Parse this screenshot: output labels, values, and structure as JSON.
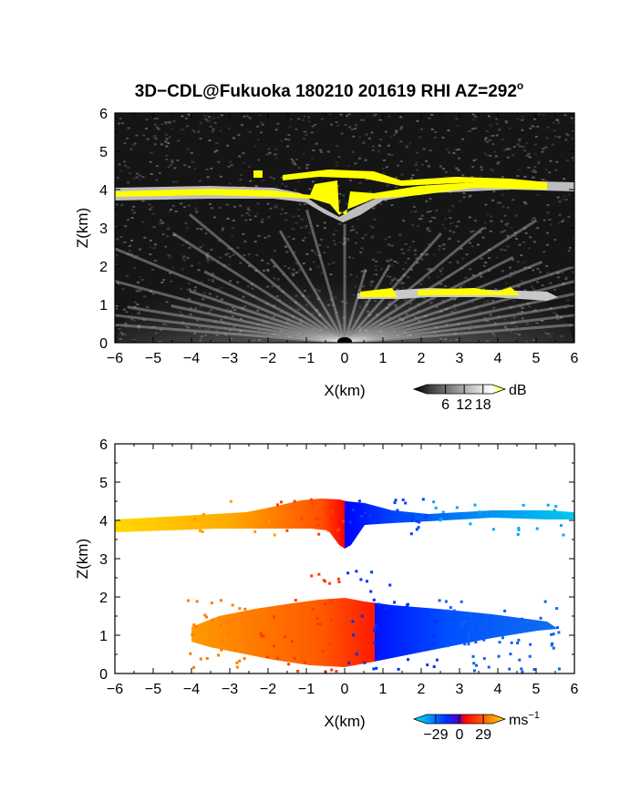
{
  "title": "3D−CDL@Fukuoka 180210 201619 RHI AZ=292",
  "title_superscript": "o",
  "chart_data": [
    {
      "type": "heatmap",
      "name": "backscatter-intensity",
      "xlabel": "X(km)",
      "ylabel": "Z(km)",
      "xlim": [
        -6,
        6
      ],
      "ylim": [
        0,
        6
      ],
      "xticks": [
        "−6",
        "−5",
        "−4",
        "−3",
        "−2",
        "−1",
        "0",
        "1",
        "2",
        "3",
        "4",
        "5",
        "6"
      ],
      "yticks": [
        "0",
        "1",
        "2",
        "3",
        "4",
        "5",
        "6"
      ],
      "colorbar": {
        "unit": "dB",
        "ticks": [
          "6",
          "12",
          "18"
        ],
        "tick_values": [
          6,
          12,
          18
        ],
        "range": [
          0,
          21
        ],
        "colors": [
          "#000000",
          "#ffffff",
          "#ffff00"
        ]
      },
      "background": "#111111",
      "features": [
        {
          "kind": "cloud-layer",
          "x_range": [
            -6,
            6
          ],
          "z_center": 3.9,
          "z_top": 4.35,
          "color": "#ffff00"
        },
        {
          "kind": "cloud-layer",
          "x_range": [
            0.5,
            5.7
          ],
          "z_center": 1.3,
          "color": "#ffff00"
        },
        {
          "kind": "near-range-clutter",
          "x_range": [
            -4.5,
            4.5
          ],
          "z_range": [
            0,
            2
          ]
        }
      ]
    },
    {
      "type": "heatmap",
      "name": "doppler-velocity",
      "xlabel": "X(km)",
      "ylabel": "Z(km)",
      "xlim": [
        -6,
        6
      ],
      "ylim": [
        0,
        6
      ],
      "xticks": [
        "−6",
        "−5",
        "−4",
        "−3",
        "−2",
        "−1",
        "0",
        "1",
        "2",
        "3",
        "4",
        "5",
        "6"
      ],
      "yticks": [
        "0",
        "1",
        "2",
        "3",
        "4",
        "5",
        "6"
      ],
      "colorbar": {
        "unit": "ms",
        "unit_superscript": "−1",
        "ticks": [
          "−29",
          "0",
          "29"
        ],
        "tick_values": [
          -29,
          0,
          29
        ],
        "range": [
          -40,
          40
        ],
        "colors": [
          "#00e5ff",
          "#0050ff",
          "#0000ff",
          "#ff0000",
          "#ff6600",
          "#ffdd00"
        ]
      },
      "background": "#ffffff",
      "features": [
        {
          "kind": "layer",
          "x_range": [
            -6,
            6
          ],
          "z_center": 4.0,
          "note": "negative x warm colors, positive x cool colors"
        },
        {
          "kind": "layer",
          "x_range": [
            -4,
            5.7
          ],
          "z_center": 1.0
        }
      ]
    }
  ]
}
